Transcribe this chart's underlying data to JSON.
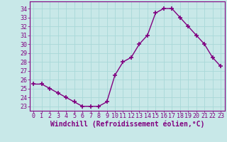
{
  "x": [
    0,
    1,
    2,
    3,
    4,
    5,
    6,
    7,
    8,
    9,
    10,
    11,
    12,
    13,
    14,
    15,
    16,
    17,
    18,
    19,
    20,
    21,
    22,
    23
  ],
  "y": [
    25.5,
    25.5,
    25.0,
    24.5,
    24.0,
    23.5,
    23.0,
    23.0,
    23.0,
    23.5,
    26.5,
    28.0,
    28.5,
    30.0,
    31.0,
    33.5,
    34.0,
    34.0,
    33.0,
    32.0,
    31.0,
    30.0,
    28.5,
    27.5
  ],
  "line_color": "#800080",
  "marker": "+",
  "marker_size": 4,
  "marker_linewidth": 1.2,
  "xlabel": "Windchill (Refroidissement éolien,°C)",
  "xlabel_fontsize": 7,
  "ylabel_ticks": [
    23,
    24,
    25,
    26,
    27,
    28,
    29,
    30,
    31,
    32,
    33,
    34
  ],
  "ylim": [
    22.5,
    34.8
  ],
  "xlim": [
    -0.5,
    23.5
  ],
  "xtick_labels": [
    "0",
    "1",
    "2",
    "3",
    "4",
    "5",
    "6",
    "7",
    "8",
    "9",
    "10",
    "11",
    "12",
    "13",
    "14",
    "15",
    "16",
    "17",
    "18",
    "19",
    "20",
    "21",
    "22",
    "23"
  ],
  "grid_color": "#a8d8d8",
  "bg_color": "#c8e8e8",
  "tick_fontsize": 6,
  "line_width": 1.0
}
